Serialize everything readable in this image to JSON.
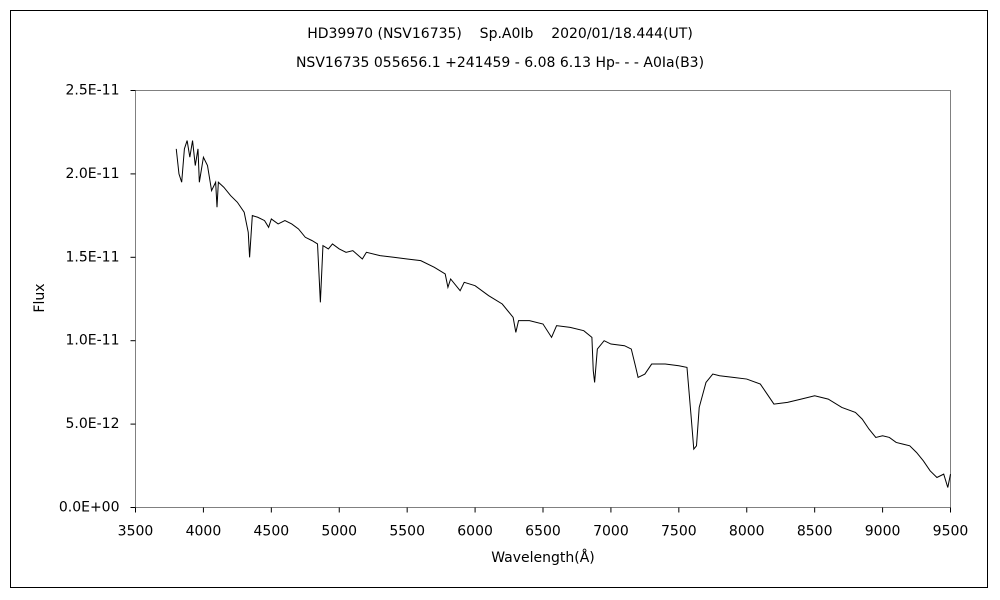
{
  "chart_data": {
    "type": "line",
    "title": "HD39970 (NSV16735)    Sp.A0Ib    2020/01/18.444(UT)",
    "subtitle": "NSV16735 055656.1 +241459 - 6.08 6.13 Hp- - - A0Ia(B3)",
    "x_label": "Wavelength(Å)",
    "y_label": "Flux",
    "color": "#000000",
    "grid": false,
    "xlim": [
      3500,
      9500
    ],
    "xticks": [
      3500,
      4000,
      4500,
      5000,
      5500,
      6000,
      6500,
      7000,
      7500,
      8000,
      8500,
      9000,
      9500
    ],
    "ylim": [
      0,
      2.5e-11
    ],
    "yticks": [
      {
        "value": 0,
        "label": "0.0E+00"
      },
      {
        "value": 5e-12,
        "label": "5.0E-12"
      },
      {
        "value": 1e-11,
        "label": "1.0E-11"
      },
      {
        "value": 1.5e-11,
        "label": "1.5E-11"
      },
      {
        "value": 2e-11,
        "label": "2.0E-11"
      },
      {
        "value": 2.5e-11,
        "label": "2.5E-11"
      }
    ],
    "x": [
      3800,
      3820,
      3840,
      3860,
      3880,
      3900,
      3920,
      3940,
      3960,
      3970,
      4000,
      4030,
      4060,
      4090,
      4100,
      4110,
      4150,
      4200,
      4250,
      4300,
      4330,
      4340,
      4360,
      4400,
      4450,
      4480,
      4500,
      4550,
      4600,
      4650,
      4700,
      4750,
      4800,
      4840,
      4861,
      4880,
      4920,
      4950,
      5000,
      5050,
      5100,
      5170,
      5200,
      5300,
      5400,
      5500,
      5600,
      5700,
      5780,
      5800,
      5820,
      5890,
      5920,
      6000,
      6100,
      6200,
      6280,
      6300,
      6320,
      6400,
      6500,
      6563,
      6600,
      6700,
      6800,
      6860,
      6870,
      6880,
      6900,
      6950,
      7000,
      7100,
      7150,
      7180,
      7200,
      7250,
      7300,
      7400,
      7500,
      7560,
      7590,
      7610,
      7630,
      7650,
      7700,
      7750,
      7800,
      7900,
      8000,
      8100,
      8150,
      8200,
      8300,
      8400,
      8500,
      8600,
      8700,
      8800,
      8850,
      8900,
      8950,
      9000,
      9050,
      9100,
      9150,
      9200,
      9250,
      9300,
      9350,
      9400,
      9450,
      9480,
      9500
    ],
    "values": [
      2.15e-11,
      2e-11,
      1.95e-11,
      2.15e-11,
      2.2e-11,
      2.1e-11,
      2.2e-11,
      2.05e-11,
      2.15e-11,
      1.95e-11,
      2.1e-11,
      2.05e-11,
      1.9e-11,
      1.95e-11,
      1.8e-11,
      1.95e-11,
      1.92e-11,
      1.87e-11,
      1.83e-11,
      1.77e-11,
      1.65e-11,
      1.5e-11,
      1.75e-11,
      1.74e-11,
      1.72e-11,
      1.68e-11,
      1.73e-11,
      1.7e-11,
      1.72e-11,
      1.7e-11,
      1.67e-11,
      1.62e-11,
      1.6e-11,
      1.58e-11,
      1.23e-11,
      1.57e-11,
      1.55e-11,
      1.58e-11,
      1.55e-11,
      1.53e-11,
      1.54e-11,
      1.49e-11,
      1.53e-11,
      1.51e-11,
      1.5e-11,
      1.49e-11,
      1.48e-11,
      1.44e-11,
      1.4e-11,
      1.32e-11,
      1.37e-11,
      1.3e-11,
      1.35e-11,
      1.33e-11,
      1.27e-11,
      1.22e-11,
      1.14e-11,
      1.05e-11,
      1.12e-11,
      1.12e-11,
      1.1e-11,
      1.02e-11,
      1.09e-11,
      1.08e-11,
      1.06e-11,
      1.02e-11,
      8.2e-12,
      7.5e-12,
      9.5e-12,
      1e-11,
      9.8e-12,
      9.7e-12,
      9.5e-12,
      8.5e-12,
      7.8e-12,
      8e-12,
      8.6e-12,
      8.6e-12,
      8.5e-12,
      8.4e-12,
      5.5e-12,
      3.5e-12,
      3.7e-12,
      6e-12,
      7.5e-12,
      8e-12,
      7.9e-12,
      7.8e-12,
      7.7e-12,
      7.4e-12,
      6.8e-12,
      6.2e-12,
      6.3e-12,
      6.5e-12,
      6.7e-12,
      6.5e-12,
      6e-12,
      5.7e-12,
      5.3e-12,
      4.7e-12,
      4.2e-12,
      4.3e-12,
      4.2e-12,
      3.9e-12,
      3.8e-12,
      3.7e-12,
      3.3e-12,
      2.8e-12,
      2.2e-12,
      1.8e-12,
      2e-12,
      1.2e-12,
      2e-12
    ]
  }
}
